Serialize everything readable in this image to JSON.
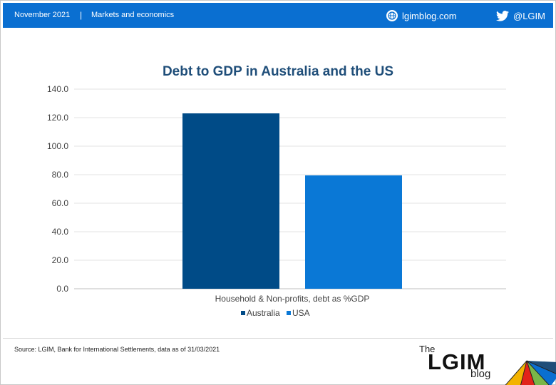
{
  "header": {
    "date": "November 2021",
    "separator": "|",
    "section": "Markets and economics",
    "site": "lgimblog.com",
    "twitter_handle": "@LGIM",
    "bar_color": "#0a6fd1"
  },
  "chart_data": {
    "type": "bar",
    "title": "Debt to GDP in Australia and the US",
    "categories": [
      "Household & Non-profits, debt as %GDP"
    ],
    "series": [
      {
        "name": "Australia",
        "values": [
          123.0
        ],
        "color": "#004b87"
      },
      {
        "name": "USA",
        "values": [
          79.5
        ],
        "color": "#0a78d6"
      }
    ],
    "yticks": [
      "0.0",
      "20.0",
      "40.0",
      "60.0",
      "80.0",
      "100.0",
      "120.0",
      "140.0"
    ],
    "ylim": [
      0,
      140
    ],
    "grid": true,
    "legend_position": "bottom"
  },
  "footer": {
    "source": "Source: LGIM,  Bank for International Settlements, data as of 31/03/2021"
  },
  "logo": {
    "the": "The",
    "lgim": "LGIM",
    "blog": "blog"
  }
}
